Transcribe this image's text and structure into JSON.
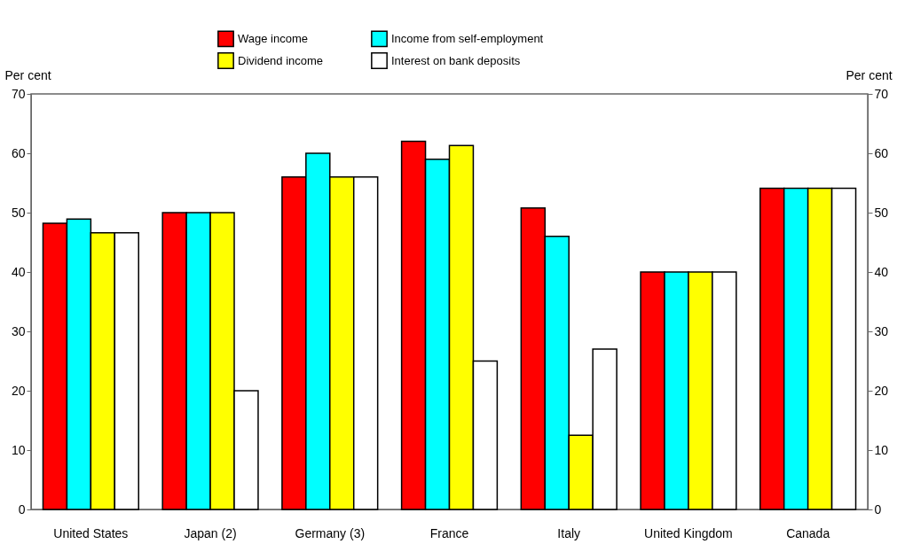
{
  "chart_data": {
    "type": "bar",
    "categories": [
      "United States",
      "Japan (2)",
      "Germany (3)",
      "France",
      "Italy",
      "United Kingdom",
      "Canada"
    ],
    "series": [
      {
        "name": "Wage income",
        "color": "#ff0000",
        "values": [
          48.2,
          50,
          56,
          62,
          50.8,
          40,
          54.1
        ]
      },
      {
        "name": "Income from self-employment",
        "color": "#00ffff",
        "values": [
          48.9,
          50,
          60,
          59,
          46,
          40,
          54.1
        ]
      },
      {
        "name": "Dividend income",
        "color": "#ffff00",
        "values": [
          46.6,
          50,
          56,
          61.3,
          12.5,
          40,
          54.1
        ]
      },
      {
        "name": "Interest on bank deposits",
        "color": "#ffffff",
        "values": [
          46.6,
          20,
          56,
          25,
          27,
          40,
          54.1
        ]
      }
    ],
    "ylabel": "Per cent",
    "y2label": "Per cent",
    "ylim": [
      0,
      70
    ],
    "yticks": [
      0,
      10,
      20,
      30,
      40,
      50,
      60,
      70
    ],
    "y2lim": [
      0,
      70
    ],
    "y2ticks": [
      0,
      10,
      20,
      30,
      40,
      50,
      60,
      70
    ],
    "legend": "top",
    "grid": false
  }
}
